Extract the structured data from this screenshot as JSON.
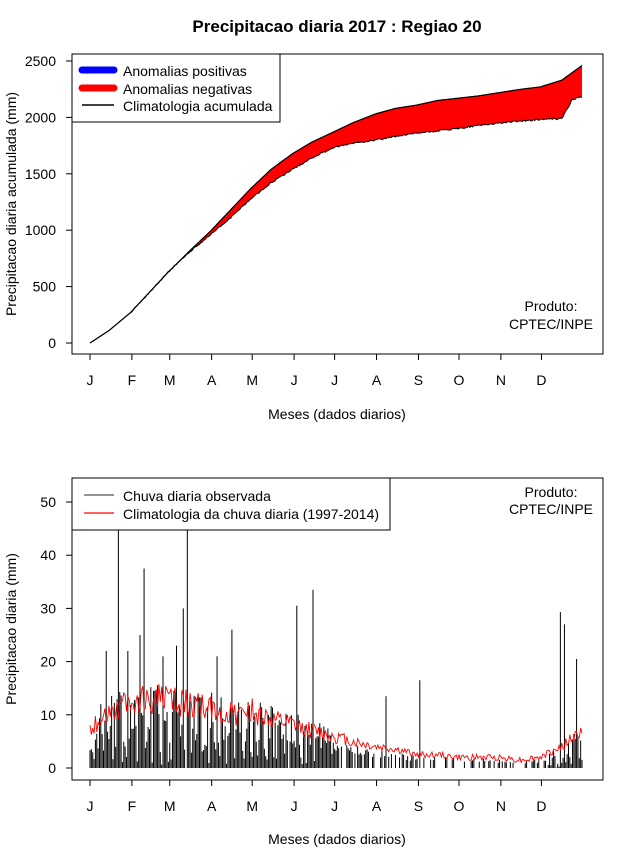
{
  "chart_data": [
    {
      "type": "area",
      "title": "Precipitacao diaria 2017 : Regiao 20",
      "xlabel": "Meses (dados diarios)",
      "ylabel": "Precipitacao diaria acumulada (mm)",
      "ylim": [
        0,
        2500
      ],
      "yticks": [
        0,
        500,
        1000,
        1500,
        2000,
        2500
      ],
      "month_ticks": [
        "J",
        "F",
        "M",
        "A",
        "M",
        "J",
        "J",
        "A",
        "S",
        "O",
        "N",
        "D"
      ],
      "legend": [
        "Anomalias positivas",
        "Anomalias negativas",
        "Climatologia acumulada"
      ],
      "colors": {
        "positive": "#0000ff",
        "negative": "#ff0000",
        "climatology": "#000000"
      },
      "annotation": [
        "Produto:",
        "CPTEC/INPE"
      ],
      "climatology_cumulative": {
        "day": [
          1,
          15,
          31,
          45,
          59,
          75,
          90,
          105,
          120,
          135,
          151,
          165,
          181,
          195,
          212,
          227,
          243,
          258,
          273,
          288,
          304,
          320,
          334,
          350,
          365
        ],
        "value": [
          0,
          110,
          270,
          450,
          630,
          820,
          990,
          1180,
          1370,
          1540,
          1680,
          1780,
          1870,
          1950,
          2030,
          2080,
          2110,
          2150,
          2170,
          2190,
          2220,
          2250,
          2270,
          2330,
          2460
        ]
      },
      "observed_cumulative": {
        "day": [
          1,
          15,
          31,
          45,
          59,
          75,
          90,
          105,
          120,
          135,
          151,
          165,
          181,
          195,
          212,
          227,
          243,
          258,
          273,
          288,
          304,
          320,
          334,
          350,
          358,
          365
        ],
        "value": [
          0,
          110,
          270,
          450,
          630,
          810,
          960,
          1110,
          1280,
          1420,
          1540,
          1640,
          1730,
          1770,
          1800,
          1830,
          1860,
          1880,
          1900,
          1930,
          1950,
          1970,
          1980,
          1990,
          2160,
          2180
        ]
      }
    },
    {
      "type": "bar",
      "xlabel": "Meses (dados diarios)",
      "ylabel": "Precipitacao diaria (mm)",
      "ylim": [
        0,
        50
      ],
      "yticks": [
        0,
        10,
        20,
        30,
        40,
        50
      ],
      "month_ticks": [
        "J",
        "F",
        "M",
        "A",
        "M",
        "J",
        "J",
        "A",
        "S",
        "O",
        "N",
        "D"
      ],
      "legend": [
        "Chuva diaria observada",
        "Climatologia da chuva diaria (1997-2014)"
      ],
      "colors": {
        "observed": "#000000",
        "climatology": "#ff0000"
      },
      "annotation": [
        "Produto:",
        "CPTEC/INPE"
      ],
      "observed_peaks": [
        {
          "day": 9,
          "value": 12
        },
        {
          "day": 13,
          "value": 22
        },
        {
          "day": 22,
          "value": 45
        },
        {
          "day": 29,
          "value": 22
        },
        {
          "day": 38,
          "value": 25
        },
        {
          "day": 41,
          "value": 37.5
        },
        {
          "day": 55,
          "value": 21
        },
        {
          "day": 65,
          "value": 23
        },
        {
          "day": 70,
          "value": 30
        },
        {
          "day": 73,
          "value": 45
        },
        {
          "day": 95,
          "value": 21
        },
        {
          "day": 106,
          "value": 26
        },
        {
          "day": 154,
          "value": 30.5
        },
        {
          "day": 166,
          "value": 33.5
        },
        {
          "day": 220,
          "value": 13.5
        },
        {
          "day": 245,
          "value": 16.5
        },
        {
          "day": 349,
          "value": 29.3
        },
        {
          "day": 352,
          "value": 27
        },
        {
          "day": 361,
          "value": 20.5
        }
      ],
      "climatology_daily": {
        "day": [
          1,
          15,
          31,
          45,
          59,
          75,
          90,
          105,
          120,
          135,
          151,
          165,
          181,
          195,
          212,
          227,
          243,
          258,
          273,
          288,
          304,
          320,
          334,
          350,
          365
        ],
        "value": [
          7,
          11,
          12,
          13,
          13,
          12,
          11,
          10,
          11,
          9,
          8,
          7,
          6,
          5,
          4,
          3.5,
          2.5,
          2.5,
          2,
          2,
          2,
          1.5,
          2,
          4,
          7
        ]
      }
    }
  ]
}
